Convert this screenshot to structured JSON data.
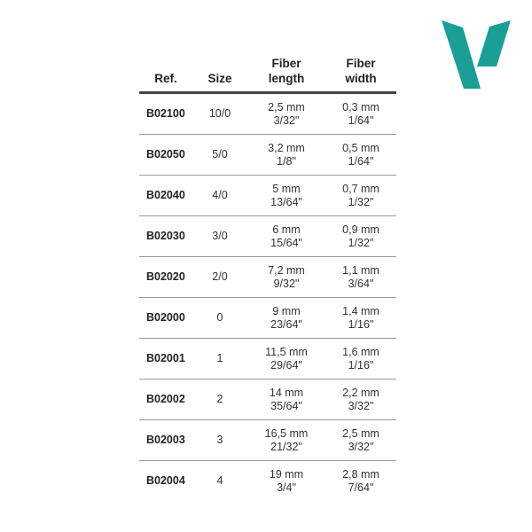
{
  "brand": {
    "logo": "V",
    "color": "#1a9e95"
  },
  "headers": {
    "ref": "Ref.",
    "size": "Size",
    "length_1": "Fiber",
    "length_2": "length",
    "width_1": "Fiber",
    "width_2": "width"
  },
  "rows": [
    {
      "ref": "B02100",
      "size": "10/0",
      "length_mm": "2,5 mm",
      "length_in": "3/32\"",
      "width_mm": "0,3 mm",
      "width_in": "1/64\""
    },
    {
      "ref": "B02050",
      "size": "5/0",
      "length_mm": "3,2 mm",
      "length_in": "1/8\"",
      "width_mm": "0,5 mm",
      "width_in": "1/64\""
    },
    {
      "ref": "B02040",
      "size": "4/0",
      "length_mm": "5 mm",
      "length_in": "13/64\"",
      "width_mm": "0,7 mm",
      "width_in": "1/32\""
    },
    {
      "ref": "B02030",
      "size": "3/0",
      "length_mm": "6 mm",
      "length_in": "15/64\"",
      "width_mm": "0,9 mm",
      "width_in": "1/32\""
    },
    {
      "ref": "B02020",
      "size": "2/0",
      "length_mm": "7,2 mm",
      "length_in": "9/32\"",
      "width_mm": "1,1 mm",
      "width_in": "3/64\""
    },
    {
      "ref": "B02000",
      "size": "0",
      "length_mm": "9 mm",
      "length_in": "23/64\"",
      "width_mm": "1,4 mm",
      "width_in": "1/16\""
    },
    {
      "ref": "B02001",
      "size": "1",
      "length_mm": "11,5 mm",
      "length_in": "29/64\"",
      "width_mm": "1,6 mm",
      "width_in": "1/16\""
    },
    {
      "ref": "B02002",
      "size": "2",
      "length_mm": "14 mm",
      "length_in": "35/64\"",
      "width_mm": "2,2 mm",
      "width_in": "3/32\""
    },
    {
      "ref": "B02003",
      "size": "3",
      "length_mm": "16,5 mm",
      "length_in": "21/32\"",
      "width_mm": "2,5 mm",
      "width_in": "3/32\""
    },
    {
      "ref": "B02004",
      "size": "4",
      "length_mm": "19 mm",
      "length_in": "3/4\"",
      "width_mm": "2,8 mm",
      "width_in": "7/64\""
    }
  ]
}
